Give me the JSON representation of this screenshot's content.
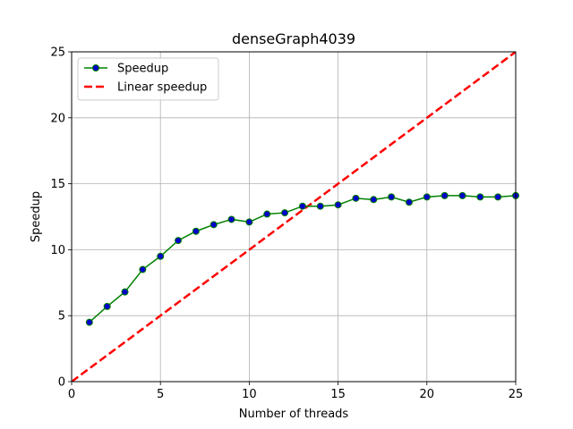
{
  "chart_data": {
    "type": "line",
    "title": "denseGraph4039",
    "xlabel": "Number of threads",
    "ylabel": "Speedup",
    "xlim": [
      0,
      25
    ],
    "ylim": [
      0,
      25
    ],
    "xticks": [
      0,
      5,
      10,
      15,
      20,
      25
    ],
    "yticks": [
      0,
      5,
      10,
      15,
      20,
      25
    ],
    "grid": true,
    "legend_position": "top-left",
    "series": [
      {
        "name": "Speedup",
        "style": "solid-with-markers",
        "line_color": "#008000",
        "marker_color": "#0000cc",
        "x": [
          1,
          2,
          3,
          4,
          5,
          6,
          7,
          8,
          9,
          10,
          11,
          12,
          13,
          14,
          15,
          16,
          17,
          18,
          19,
          20,
          21,
          22,
          23,
          24,
          25
        ],
        "y": [
          4.5,
          5.7,
          6.8,
          8.5,
          9.5,
          10.7,
          11.4,
          11.9,
          12.3,
          12.1,
          12.7,
          12.8,
          13.3,
          13.3,
          13.4,
          13.9,
          13.8,
          14.0,
          13.6,
          14.0,
          14.1,
          14.1,
          14.0,
          14.0,
          14.1
        ]
      },
      {
        "name": "Linear speedup",
        "style": "dashed",
        "line_color": "#ff0000",
        "x": [
          0,
          25
        ],
        "y": [
          0,
          25
        ]
      }
    ]
  }
}
